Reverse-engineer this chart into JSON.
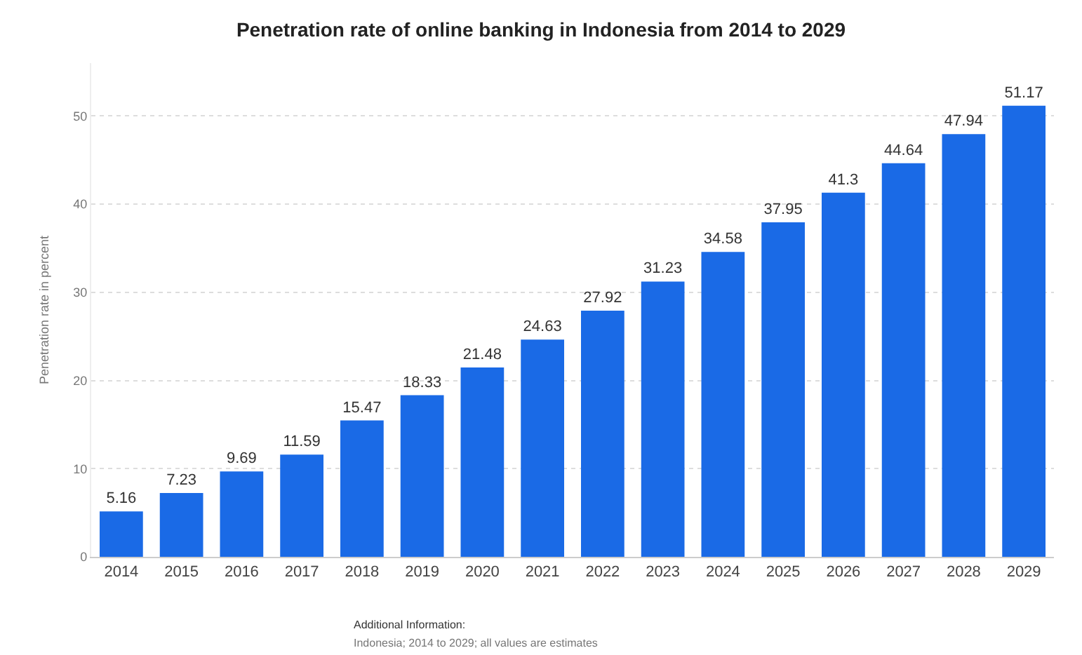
{
  "chart_data": {
    "type": "bar",
    "title": "Penetration rate of online banking in Indonesia from 2014 to 2029",
    "ylabel": "Penetration rate in percent",
    "categories": [
      "2014",
      "2015",
      "2016",
      "2017",
      "2018",
      "2019",
      "2020",
      "2021",
      "2022",
      "2023",
      "2024",
      "2025",
      "2026",
      "2027",
      "2028",
      "2029"
    ],
    "values": [
      5.16,
      7.23,
      9.69,
      11.59,
      15.47,
      18.33,
      21.48,
      24.63,
      27.92,
      31.23,
      34.58,
      37.95,
      41.3,
      44.64,
      47.94,
      51.17
    ],
    "value_labels": [
      "5.16",
      "7.23",
      "9.69",
      "11.59",
      "15.47",
      "18.33",
      "21.48",
      "24.63",
      "27.92",
      "31.23",
      "34.58",
      "37.95",
      "41.3",
      "44.64",
      "47.94",
      "51.17"
    ],
    "color": "#1a6ae6",
    "ylim": [
      0,
      56
    ],
    "yticks": [
      0,
      10,
      20,
      30,
      40,
      50
    ],
    "grid": "y",
    "annotations": [
      "Additional Information:",
      "Indonesia; 2014 to 2029; all values are estimates"
    ]
  }
}
